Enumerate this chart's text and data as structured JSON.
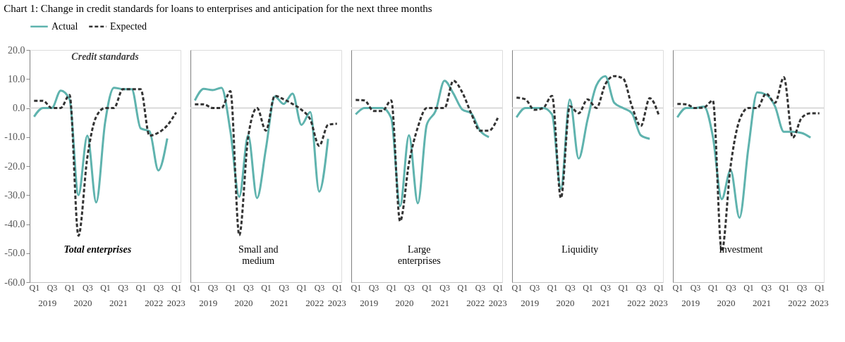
{
  "chart_data": [
    {
      "type": "line",
      "title": "Chart 1: Change in credit standards for loans to enterprises and anticipation for the next three months",
      "subtitle": "Credit standards",
      "categories": [
        "Q1",
        null,
        "Q3",
        null,
        "Q1",
        null,
        "Q3",
        null,
        "Q1",
        null,
        "Q3",
        null,
        "Q1",
        null,
        "Q3",
        null,
        "Q1"
      ],
      "series": [
        {
          "name": "Actual",
          "color": "#5fb3ae",
          "line_style": "solid",
          "values": [
            -3,
            0,
            0,
            6,
            3,
            -30,
            -9.5,
            -32.5,
            -5,
            7,
            6.5,
            6.5,
            -7,
            -8,
            -21.5,
            -10.5,
            null
          ]
        },
        {
          "name": "Expected",
          "color": "#333333",
          "line_style": "dashed",
          "values": [
            2.5,
            2.5,
            0,
            0,
            4.5,
            -44,
            -17,
            -3,
            0,
            0,
            6.5,
            6.5,
            6.5,
            -9.5,
            -8.5,
            -6,
            -1.5
          ]
        }
      ],
      "ylim": [
        -60,
        20
      ],
      "yticks": [
        {
          "value": -60,
          "label": "-60.0"
        },
        {
          "value": -50,
          "label": "-50.0"
        },
        {
          "value": -40,
          "label": "-40.0"
        },
        {
          "value": -30,
          "label": "-30.0"
        },
        {
          "value": -20,
          "label": "-20.0"
        },
        {
          "value": -10,
          "label": "-10.0"
        },
        {
          "value": 0,
          "label": "0.0"
        },
        {
          "value": 10,
          "label": "10.0"
        },
        {
          "value": 20,
          "label": "20.0"
        }
      ],
      "ref_lines": [
        {
          "axis": "y",
          "value": 0,
          "color": "#d9d9d9"
        }
      ],
      "annotations": [
        "Total enterprises",
        "2019",
        "2020",
        "2021",
        "2022",
        "2023"
      ],
      "legend": "top",
      "grid": false
    },
    {
      "type": "line",
      "categories": [
        "Q1",
        null,
        "Q3",
        null,
        "Q1",
        null,
        "Q3",
        null,
        "Q1",
        null,
        "Q3",
        null,
        "Q1",
        null,
        "Q3",
        null,
        "Q1"
      ],
      "series": [
        {
          "name": "Actual",
          "color": "#5fb3ae",
          "line_style": "solid",
          "values": [
            2.6,
            6.6,
            6.2,
            7,
            -8,
            -30.6,
            -9.4,
            -31,
            -14,
            4,
            1.4,
            5,
            -5.8,
            -1.4,
            -28.8,
            -10.6,
            null
          ]
        },
        {
          "name": "Expected",
          "color": "#333333",
          "line_style": "dashed",
          "values": [
            1.3,
            1.3,
            0,
            0,
            5.8,
            -43.8,
            -10,
            0,
            -7.8,
            4.2,
            3,
            1.4,
            -0.6,
            -4,
            -13,
            -5.8,
            -5.4
          ]
        }
      ],
      "ylim": [
        -60,
        20
      ],
      "tick_labels": "x",
      "ref_lines": [
        {
          "axis": "y",
          "value": 0,
          "color": "#d9d9d9"
        }
      ],
      "annotations": [
        "Small and\nmedium",
        "2019",
        "2020",
        "2021",
        "2022",
        "2023"
      ],
      "grid": false
    },
    {
      "type": "line",
      "categories": [
        "Q1",
        null,
        "Q3",
        null,
        "Q1",
        null,
        "Q3",
        null,
        "Q1",
        null,
        "Q3",
        null,
        "Q1",
        null,
        "Q3",
        null,
        "Q1"
      ],
      "series": [
        {
          "name": "Actual",
          "color": "#5fb3ae",
          "line_style": "solid",
          "values": [
            -2.2,
            0,
            0,
            0,
            -3.4,
            -33.8,
            -9.4,
            -32.8,
            -5.8,
            -1,
            9.4,
            5,
            -0.5,
            -1.8,
            -7.8,
            -10,
            null
          ]
        },
        {
          "name": "Expected",
          "color": "#333333",
          "line_style": "dashed",
          "values": [
            2.8,
            2.6,
            -1,
            -1,
            2.6,
            -39,
            -19,
            -6.6,
            0,
            0,
            0,
            9.4,
            5.4,
            -1.8,
            -7.8,
            -7.8,
            -3.4
          ]
        }
      ],
      "ylim": [
        -60,
        20
      ],
      "tick_labels": "x",
      "ref_lines": [
        {
          "axis": "y",
          "value": 0,
          "color": "#d9d9d9"
        }
      ],
      "annotations": [
        "Large\nenterprises",
        "2019",
        "2020",
        "2021",
        "2022",
        "2023"
      ],
      "grid": false
    },
    {
      "type": "line",
      "categories": [
        "Q1",
        null,
        "Q3",
        null,
        "Q1",
        null,
        "Q3",
        null,
        "Q1",
        null,
        "Q3",
        null,
        "Q1",
        null,
        "Q3",
        null,
        "Q1"
      ],
      "series": [
        {
          "name": "Actual",
          "color": "#5fb3ae",
          "line_style": "solid",
          "values": [
            -3.2,
            0,
            0,
            0,
            -2.2,
            -27.8,
            2.9,
            -17.4,
            -4,
            7.8,
            11,
            1.8,
            0,
            -1.8,
            -9.4,
            -10.6,
            null
          ]
        },
        {
          "name": "Expected",
          "color": "#333333",
          "line_style": "dashed",
          "values": [
            3.6,
            3,
            -0.6,
            0,
            4.2,
            -31,
            0.6,
            -1.8,
            3,
            0,
            8.2,
            11,
            10.2,
            0.6,
            -6.2,
            3.4,
            -2.2
          ]
        }
      ],
      "ylim": [
        -60,
        20
      ],
      "tick_labels": "x",
      "ref_lines": [
        {
          "axis": "y",
          "value": 0,
          "color": "#d9d9d9"
        }
      ],
      "annotations": [
        "Liquidity",
        "2019",
        "2020",
        "2021",
        "2022",
        "2023"
      ],
      "grid": false
    },
    {
      "type": "line",
      "categories": [
        "Q1",
        null,
        "Q3",
        null,
        "Q1",
        null,
        "Q3",
        null,
        "Q1",
        null,
        "Q3",
        null,
        "Q1",
        null,
        "Q3",
        null,
        "Q1"
      ],
      "series": [
        {
          "name": "Actual",
          "color": "#5fb3ae",
          "line_style": "solid",
          "values": [
            -3.2,
            0,
            0,
            0.5,
            -9.8,
            -31.4,
            -21.4,
            -37.8,
            -13.8,
            5.4,
            4.6,
            0.6,
            -8.2,
            -8.2,
            -8.6,
            -10.2,
            null
          ]
        },
        {
          "name": "Expected",
          "color": "#333333",
          "line_style": "dashed",
          "values": [
            1.4,
            1.3,
            0,
            0.2,
            2.6,
            -49.4,
            -20,
            -4.2,
            0,
            0,
            5,
            1.8,
            10.6,
            -10.2,
            -3.4,
            -1.8,
            -1.8
          ]
        }
      ],
      "ylim": [
        -60,
        20
      ],
      "tick_labels": "x",
      "ref_lines": [
        {
          "axis": "y",
          "value": 0,
          "color": "#d9d9d9"
        }
      ],
      "annotations": [
        "Investment",
        "2019",
        "2020",
        "2021",
        "2022",
        "2023"
      ],
      "grid": false
    }
  ]
}
